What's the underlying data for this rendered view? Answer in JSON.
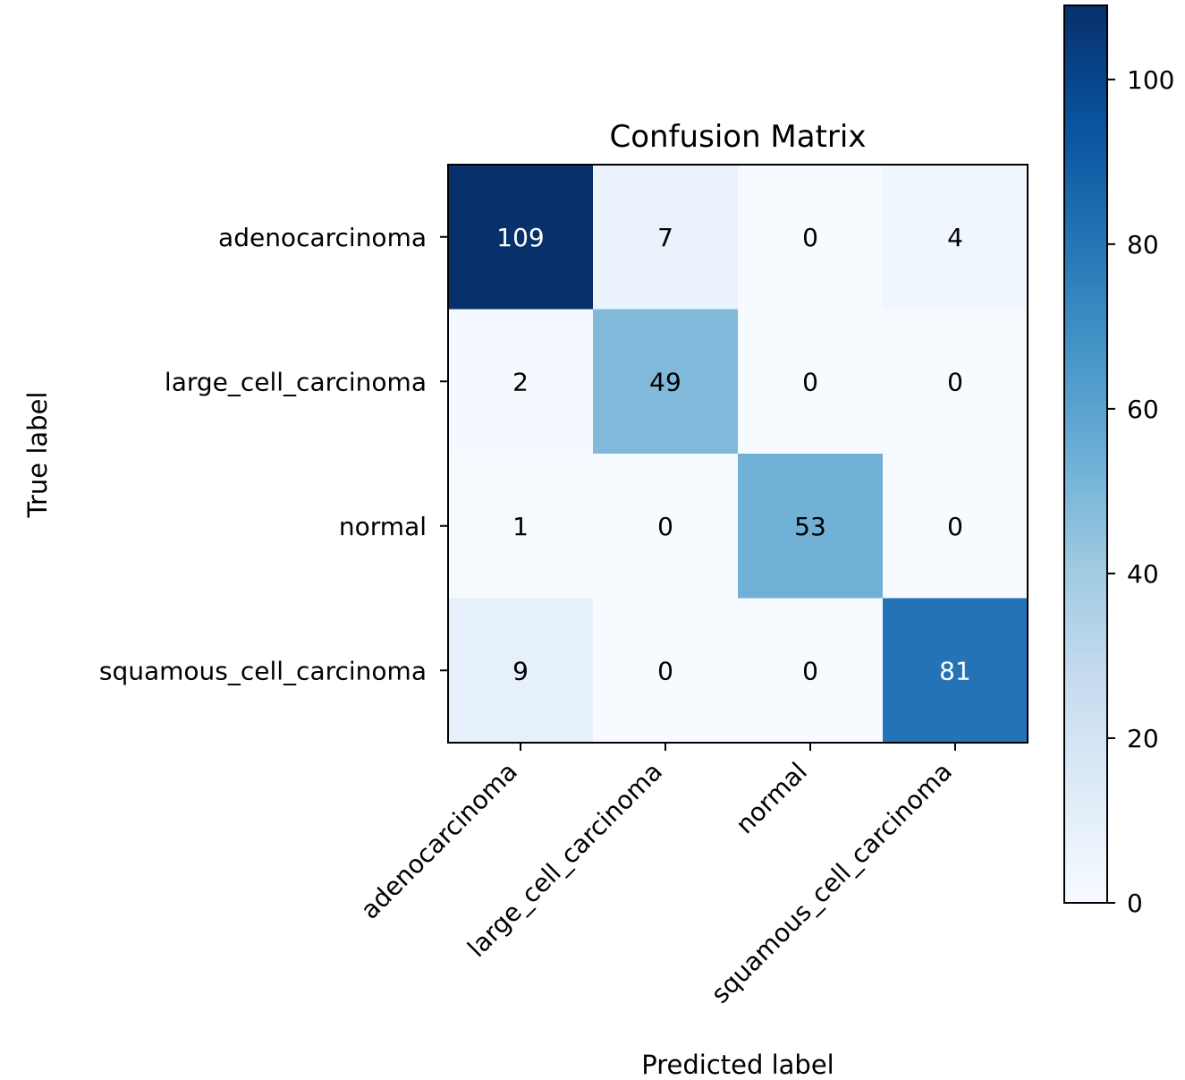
{
  "chart_data": {
    "type": "heatmap",
    "title": "Confusion Matrix",
    "xlabel": "Predicted label",
    "ylabel": "True label",
    "x_categories": [
      "adenocarcinoma",
      "large_cell_carcinoma",
      "normal",
      "squamous_cell_carcinoma"
    ],
    "y_categories": [
      "adenocarcinoma",
      "large_cell_carcinoma",
      "normal",
      "squamous_cell_carcinoma"
    ],
    "values": [
      [
        109,
        7,
        0,
        4
      ],
      [
        2,
        49,
        0,
        0
      ],
      [
        1,
        0,
        53,
        0
      ],
      [
        9,
        0,
        0,
        81
      ]
    ],
    "colormap": "Blues",
    "vmin": 0,
    "vmax": 109,
    "colorbar_ticks": [
      0,
      20,
      40,
      60,
      80,
      100
    ],
    "grid": false
  }
}
